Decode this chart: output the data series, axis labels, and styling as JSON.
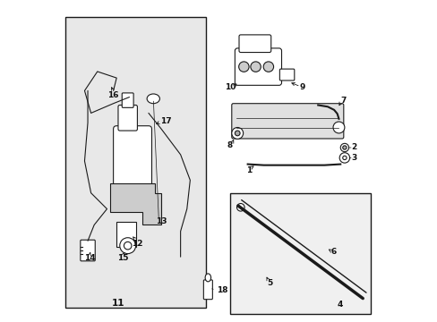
{
  "bg_color": "#ffffff",
  "panel_bg": "#e8e8e8",
  "inset_bg": "#f0f0f0",
  "line_color": "#1a1a1a",
  "label_color": "#111111",
  "figsize": [
    4.89,
    3.6
  ],
  "dpi": 100
}
